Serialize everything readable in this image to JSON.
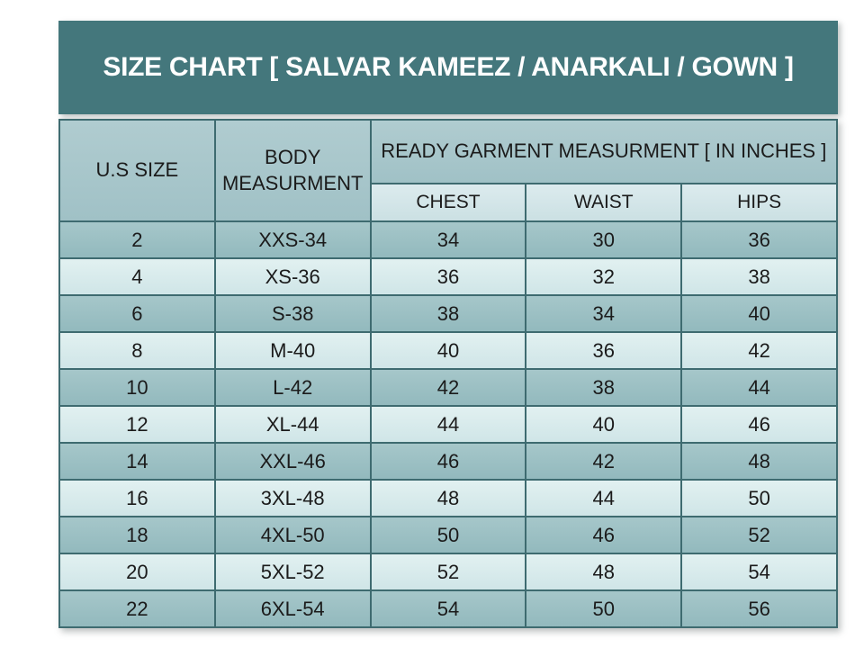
{
  "title": "SIZE CHART [ SALVAR KAMEEZ / ANARKALI / GOWN ]",
  "chart_data": {
    "type": "table",
    "title": "SIZE CHART [ SALVAR KAMEEZ / ANARKALI / GOWN ]",
    "header": {
      "us_size": "U.S SIZE",
      "body_measurement": "BODY MEASURMENT",
      "group_label": "READY GARMENT MEASURMENT [ IN INCHES ]",
      "sub_columns": [
        "CHEST",
        "WAIST",
        "HIPS"
      ]
    },
    "columns": [
      "U.S SIZE",
      "BODY MEASURMENT",
      "CHEST",
      "WAIST",
      "HIPS"
    ],
    "rows": [
      [
        "2",
        "XXS-34",
        "34",
        "30",
        "36"
      ],
      [
        "4",
        "XS-36",
        "36",
        "32",
        "38"
      ],
      [
        "6",
        "S-38",
        "38",
        "34",
        "40"
      ],
      [
        "8",
        "M-40",
        "40",
        "36",
        "42"
      ],
      [
        "10",
        "L-42",
        "42",
        "38",
        "44"
      ],
      [
        "12",
        "XL-44",
        "44",
        "40",
        "46"
      ],
      [
        "14",
        "XXL-46",
        "46",
        "42",
        "48"
      ],
      [
        "16",
        "3XL-48",
        "48",
        "44",
        "50"
      ],
      [
        "18",
        "4XL-50",
        "50",
        "46",
        "52"
      ],
      [
        "20",
        "5XL-52",
        "52",
        "48",
        "54"
      ],
      [
        "22",
        "6XL-54",
        "54",
        "50",
        "56"
      ]
    ]
  },
  "colors": {
    "title_bar_bg": "#44777c",
    "title_text": "#ffffff",
    "header_cell_bg": "#a7c6ca",
    "subheader_cell_bg": "#d3e5e8",
    "row_dark_bg": "#9bbfc3",
    "row_light_bg": "#d8eaec",
    "border": "#3e6b70",
    "cell_text": "#1b1b1b",
    "page_bg": "#ffffff"
  }
}
